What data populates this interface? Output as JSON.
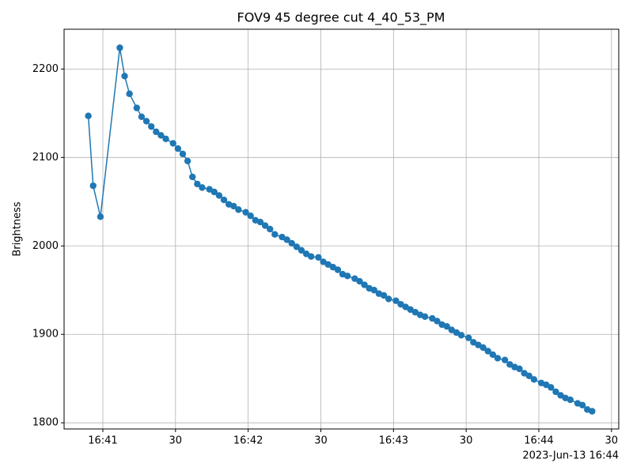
{
  "chart_data": {
    "type": "line",
    "title": "FOV9 45 degree cut 4_40_53_PM",
    "y_label": "Brightness",
    "x_offset_label": "2023-Jun-13 16:44",
    "x": [
      "16:40:54",
      "16:40:56",
      "16:40:59",
      "16:41:07",
      "16:41:09",
      "16:41:11",
      "16:41:14",
      "16:41:16",
      "16:41:18",
      "16:41:20",
      "16:41:22",
      "16:41:24",
      "16:41:26",
      "16:41:29",
      "16:41:31",
      "16:41:33",
      "16:41:35",
      "16:41:37",
      "16:41:39",
      "16:41:41",
      "16:41:44",
      "16:41:46",
      "16:41:48",
      "16:41:50",
      "16:41:52",
      "16:41:54",
      "16:41:56",
      "16:41:59",
      "16:42:01",
      "16:42:03",
      "16:42:05",
      "16:42:07",
      "16:42:09",
      "16:42:11",
      "16:42:14",
      "16:42:16",
      "16:42:18",
      "16:42:20",
      "16:42:22",
      "16:42:24",
      "16:42:26",
      "16:42:29",
      "16:42:31",
      "16:42:33",
      "16:42:35",
      "16:42:37",
      "16:42:39",
      "16:42:41",
      "16:42:44",
      "16:42:46",
      "16:42:48",
      "16:42:50",
      "16:42:52",
      "16:42:54",
      "16:42:56",
      "16:42:58",
      "16:43:01",
      "16:43:03",
      "16:43:05",
      "16:43:07",
      "16:43:09",
      "16:43:11",
      "16:43:13",
      "16:43:16",
      "16:43:18",
      "16:43:20",
      "16:43:22",
      "16:43:24",
      "16:43:26",
      "16:43:28",
      "16:43:31",
      "16:43:33",
      "16:43:35",
      "16:43:37",
      "16:43:39",
      "16:43:41",
      "16:43:43",
      "16:43:46",
      "16:43:48",
      "16:43:50",
      "16:43:52",
      "16:43:54",
      "16:43:56",
      "16:43:58",
      "16:44:01",
      "16:44:03",
      "16:44:05",
      "16:44:07",
      "16:44:09",
      "16:44:11",
      "16:44:13",
      "16:44:16",
      "16:44:18",
      "16:44:20",
      "16:44:22"
    ],
    "series": [
      {
        "name": "Brightness",
        "color": "#1f77b4",
        "values": [
          2147,
          2068,
          2033,
          2224,
          2192,
          2172,
          2156,
          2146,
          2141,
          2135,
          2129,
          2125,
          2121,
          2116,
          2110,
          2104,
          2096,
          2078,
          2070,
          2066,
          2064,
          2061,
          2057,
          2052,
          2047,
          2045,
          2041,
          2038,
          2034,
          2029,
          2027,
          2023,
          2019,
          2013,
          2010,
          2007,
          2003,
          1999,
          1995,
          1991,
          1988,
          1987,
          1982,
          1979,
          1976,
          1973,
          1968,
          1966,
          1963,
          1960,
          1956,
          1952,
          1950,
          1946,
          1944,
          1940,
          1938,
          1934,
          1931,
          1928,
          1925,
          1922,
          1920,
          1918,
          1915,
          1911,
          1909,
          1905,
          1902,
          1899,
          1896,
          1891,
          1888,
          1885,
          1881,
          1877,
          1873,
          1871,
          1866,
          1863,
          1861,
          1856,
          1853,
          1849,
          1845,
          1843,
          1840,
          1835,
          1831,
          1828,
          1826,
          1822,
          1820,
          1815,
          1813
        ]
      }
    ],
    "xlim": [
      "16:40:44",
      "16:44:33"
    ],
    "xticks": [
      {
        "value": "16:41:00",
        "label": "16:41"
      },
      {
        "value": "16:41:30",
        "label": "30"
      },
      {
        "value": "16:42:00",
        "label": "16:42"
      },
      {
        "value": "16:42:30",
        "label": "30"
      },
      {
        "value": "16:43:00",
        "label": "16:43"
      },
      {
        "value": "16:43:30",
        "label": "30"
      },
      {
        "value": "16:44:00",
        "label": "16:44"
      },
      {
        "value": "16:44:30",
        "label": "30"
      }
    ],
    "ylim": [
      1793,
      2245
    ],
    "yticks": [
      1800,
      1900,
      2000,
      2100,
      2200
    ],
    "grid": true
  }
}
